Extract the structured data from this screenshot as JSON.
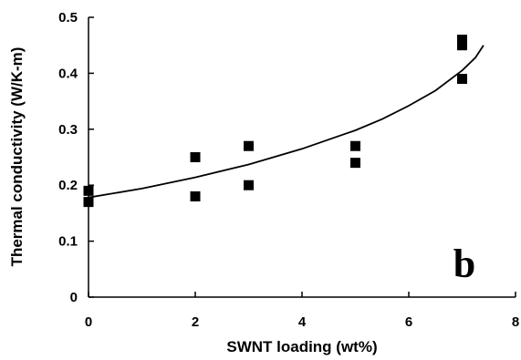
{
  "chart_data": {
    "type": "scatter",
    "xlabel": "SWNT loading (wt%)",
    "ylabel": "Thermal conductivity (W/K-m)",
    "xlim": [
      0,
      8
    ],
    "ylim": [
      0,
      0.5
    ],
    "xticks": [
      0,
      2,
      4,
      6,
      8
    ],
    "yticks": [
      0,
      0.1,
      0.2,
      0.3,
      0.4,
      0.5
    ],
    "xtick_labels": [
      "0",
      "2",
      "4",
      "6",
      "8"
    ],
    "ytick_labels": [
      "0",
      "0.1",
      "0.2",
      "0.3",
      "0.4",
      "0.5"
    ],
    "grid": false,
    "annotation": "b",
    "series": [
      {
        "marker": "square",
        "color": "#000000",
        "points": [
          {
            "x": 0,
            "y": 0.19
          },
          {
            "x": 0,
            "y": 0.17
          },
          {
            "x": 2,
            "y": 0.25
          },
          {
            "x": 2,
            "y": 0.18
          },
          {
            "x": 3,
            "y": 0.27
          },
          {
            "x": 3,
            "y": 0.2
          },
          {
            "x": 5,
            "y": 0.27
          },
          {
            "x": 5,
            "y": 0.24
          },
          {
            "x": 7,
            "y": 0.46
          },
          {
            "x": 7,
            "y": 0.45
          },
          {
            "x": 7,
            "y": 0.39
          }
        ]
      }
    ],
    "fit_curve": {
      "type": "line",
      "color": "#000000",
      "points": [
        {
          "x": 0,
          "y": 0.178
        },
        {
          "x": 1,
          "y": 0.194
        },
        {
          "x": 2,
          "y": 0.214
        },
        {
          "x": 3,
          "y": 0.237
        },
        {
          "x": 4,
          "y": 0.265
        },
        {
          "x": 5,
          "y": 0.298
        },
        {
          "x": 5.5,
          "y": 0.318
        },
        {
          "x": 6,
          "y": 0.342
        },
        {
          "x": 6.5,
          "y": 0.369
        },
        {
          "x": 7,
          "y": 0.405
        },
        {
          "x": 7.25,
          "y": 0.428
        },
        {
          "x": 7.4,
          "y": 0.45
        }
      ]
    }
  }
}
